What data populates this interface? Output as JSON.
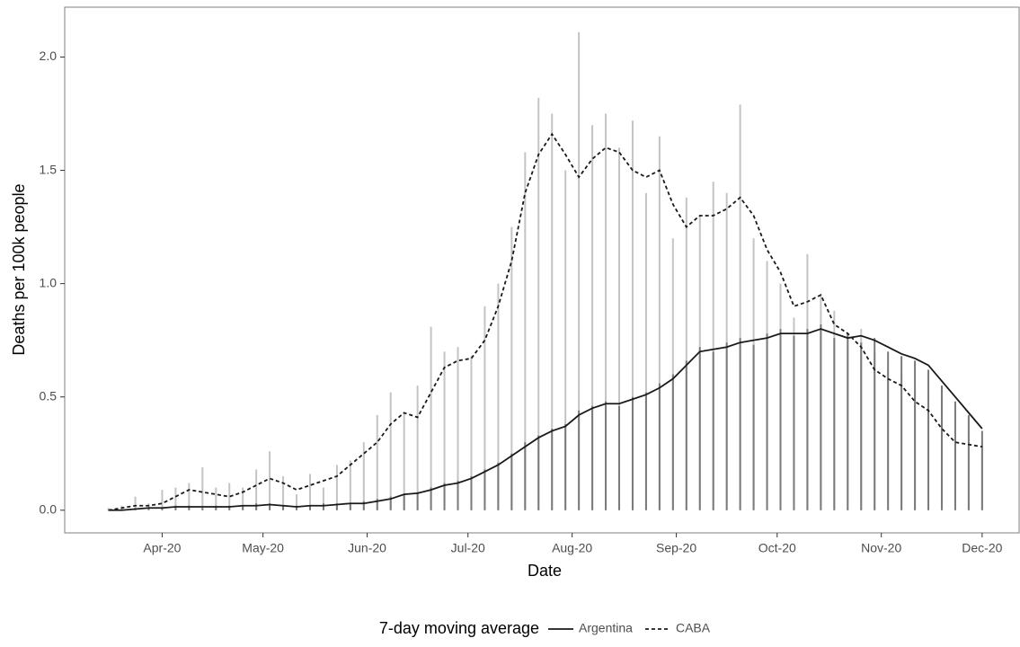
{
  "chart_data": {
    "type": "combo",
    "x_label": "Date",
    "y_label": "Deaths per 100k people",
    "legend_title": "7-day moving average",
    "legend_position": "bottom",
    "xlim": [
      63,
      347
    ],
    "xticks": [
      {
        "value": 92,
        "label": "Apr-20"
      },
      {
        "value": 122,
        "label": "May-20"
      },
      {
        "value": 153,
        "label": "Jun-20"
      },
      {
        "value": 183,
        "label": "Jul-20"
      },
      {
        "value": 214,
        "label": "Aug-20"
      },
      {
        "value": 245,
        "label": "Sep-20"
      },
      {
        "value": 275,
        "label": "Oct-20"
      },
      {
        "value": 306,
        "label": "Nov-20"
      },
      {
        "value": 336,
        "label": "Dec-20"
      }
    ],
    "ylim": [
      -0.1,
      2.22
    ],
    "yticks": [
      {
        "value": 0,
        "label": "0.0"
      },
      {
        "value": 0.5,
        "label": "0.5"
      },
      {
        "value": 1,
        "label": "1.0"
      },
      {
        "value": 1.5,
        "label": "1.5"
      },
      {
        "value": 2,
        "label": "2.0"
      }
    ],
    "x": [
      76,
      80,
      84,
      88,
      92,
      96,
      100,
      104,
      108,
      112,
      116,
      120,
      124,
      128,
      132,
      136,
      140,
      144,
      148,
      152,
      156,
      160,
      164,
      168,
      172,
      176,
      180,
      184,
      188,
      192,
      196,
      200,
      204,
      208,
      212,
      216,
      220,
      224,
      228,
      232,
      236,
      240,
      244,
      248,
      252,
      256,
      260,
      264,
      268,
      272,
      276,
      280,
      284,
      288,
      292,
      296,
      300,
      304,
      308,
      312,
      316,
      320,
      324,
      328,
      332,
      336
    ],
    "series": [
      {
        "type": "bar",
        "color": "#c4c4c4",
        "values": [
          0.01,
          0.02,
          0.06,
          0.03,
          0.09,
          0.1,
          0.12,
          0.19,
          0.1,
          0.12,
          0.1,
          0.18,
          0.26,
          0.15,
          0.07,
          0.16,
          0.1,
          0.2,
          0.22,
          0.3,
          0.42,
          0.52,
          0.43,
          0.55,
          0.81,
          0.7,
          0.72,
          0.68,
          0.9,
          1.0,
          1.25,
          1.58,
          1.82,
          1.75,
          1.5,
          2.11,
          1.7,
          1.75,
          1.6,
          1.72,
          1.4,
          1.65,
          1.2,
          1.38,
          1.3,
          1.45,
          1.4,
          1.79,
          1.2,
          1.1,
          1.0,
          0.85,
          1.13,
          0.95,
          0.88,
          0.78,
          0.8,
          0.7,
          0.62,
          0.6,
          0.52,
          0.49,
          0.4,
          0.32,
          0.35,
          0.3
        ]
      },
      {
        "type": "bar",
        "color": "#7a7a7a",
        "values": [
          0,
          0,
          0.01,
          0.01,
          0.01,
          0.02,
          0.02,
          0.01,
          0.02,
          0.02,
          0.02,
          0.03,
          0.03,
          0.02,
          0.02,
          0.02,
          0.03,
          0.03,
          0.03,
          0.04,
          0.05,
          0.06,
          0.07,
          0.08,
          0.1,
          0.12,
          0.13,
          0.15,
          0.18,
          0.21,
          0.25,
          0.3,
          0.33,
          0.36,
          0.38,
          0.44,
          0.46,
          0.48,
          0.46,
          0.5,
          0.52,
          0.56,
          0.6,
          0.66,
          0.72,
          0.7,
          0.74,
          0.76,
          0.73,
          0.78,
          0.8,
          0.77,
          0.8,
          0.82,
          0.76,
          0.78,
          0.74,
          0.76,
          0.7,
          0.68,
          0.66,
          0.62,
          0.55,
          0.48,
          0.42,
          0.35
        ]
      },
      {
        "type": "line",
        "name": "Argentina",
        "color": "#1a1a1a",
        "dash": "solid",
        "values": [
          0,
          0,
          0.005,
          0.01,
          0.01,
          0.015,
          0.015,
          0.015,
          0.015,
          0.015,
          0.02,
          0.02,
          0.025,
          0.02,
          0.015,
          0.02,
          0.02,
          0.025,
          0.03,
          0.03,
          0.04,
          0.05,
          0.07,
          0.075,
          0.09,
          0.11,
          0.12,
          0.14,
          0.17,
          0.2,
          0.24,
          0.28,
          0.32,
          0.35,
          0.37,
          0.42,
          0.45,
          0.47,
          0.47,
          0.49,
          0.51,
          0.54,
          0.58,
          0.64,
          0.7,
          0.71,
          0.72,
          0.74,
          0.75,
          0.76,
          0.78,
          0.78,
          0.78,
          0.8,
          0.78,
          0.76,
          0.77,
          0.75,
          0.72,
          0.69,
          0.67,
          0.64,
          0.57,
          0.5,
          0.43,
          0.36
        ]
      },
      {
        "type": "line",
        "name": "CABA",
        "color": "#1a1a1a",
        "dash": "dashed",
        "values": [
          0,
          0.01,
          0.02,
          0.02,
          0.03,
          0.06,
          0.09,
          0.08,
          0.07,
          0.06,
          0.08,
          0.11,
          0.14,
          0.12,
          0.09,
          0.11,
          0.13,
          0.15,
          0.2,
          0.25,
          0.3,
          0.38,
          0.43,
          0.41,
          0.52,
          0.63,
          0.66,
          0.67,
          0.75,
          0.9,
          1.1,
          1.4,
          1.57,
          1.66,
          1.57,
          1.47,
          1.55,
          1.6,
          1.58,
          1.5,
          1.47,
          1.5,
          1.35,
          1.25,
          1.3,
          1.3,
          1.33,
          1.38,
          1.3,
          1.15,
          1.05,
          0.9,
          0.92,
          0.95,
          0.82,
          0.78,
          0.72,
          0.62,
          0.58,
          0.55,
          0.48,
          0.44,
          0.36,
          0.3,
          0.29,
          0.28
        ]
      }
    ]
  }
}
